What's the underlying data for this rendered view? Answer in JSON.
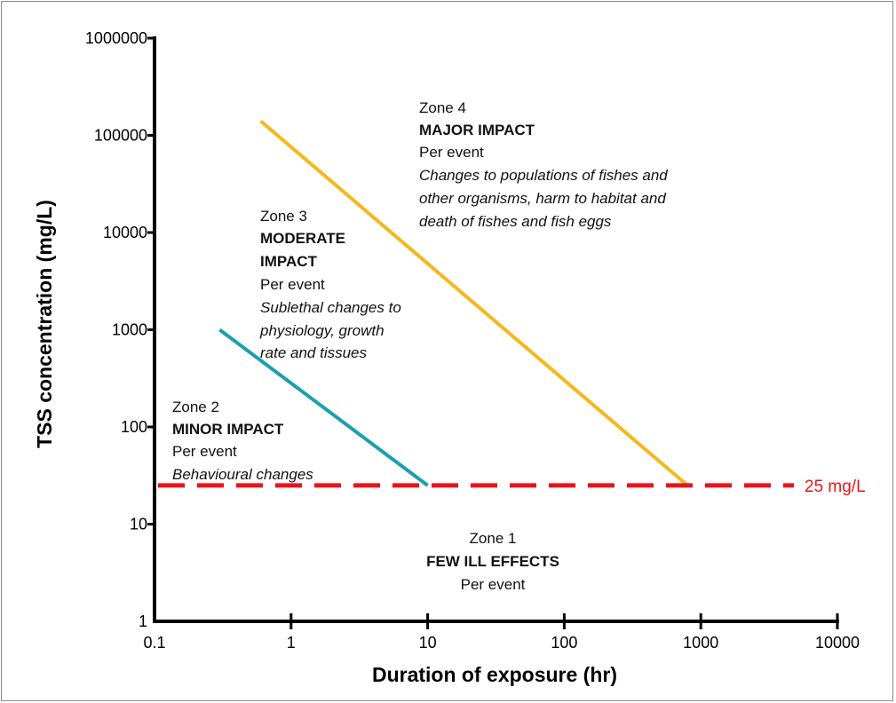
{
  "chart_data": {
    "type": "line",
    "x_scale": "log",
    "y_scale": "log",
    "xlabel": "Duration of exposure (hr)",
    "ylabel": "TSS concentration (mg/L)",
    "xlim": [
      0.1,
      10000
    ],
    "ylim": [
      1,
      1000000
    ],
    "x_ticks": [
      0.1,
      1,
      10,
      100,
      1000,
      10000
    ],
    "x_tick_labels": [
      "0.1",
      "1",
      "10",
      "100",
      "1000",
      "10000"
    ],
    "y_ticks": [
      1,
      10,
      100,
      1000,
      10000,
      100000,
      1000000
    ],
    "y_tick_labels": [
      "1",
      "10",
      "100",
      "1000",
      "10000",
      "100000",
      "1000000"
    ],
    "grid": false,
    "series": [
      {
        "color": "#1aa0ad",
        "points": [
          [
            0.3,
            1000
          ],
          [
            10,
            25
          ]
        ]
      },
      {
        "color": "#f4b81c",
        "points": [
          [
            0.6,
            140000
          ],
          [
            800,
            25
          ]
        ]
      }
    ],
    "threshold": {
      "value": 25,
      "label": "25 mg/L",
      "color": "#e8141c"
    },
    "zones": [
      {
        "name": "Zone 1",
        "impact": "FEW ILL EFFECTS",
        "frequency": "Per event",
        "description": []
      },
      {
        "name": "Zone 2",
        "impact": "MINOR IMPACT",
        "frequency": "Per event",
        "description": [
          "Behavioural changes"
        ]
      },
      {
        "name": "Zone 3",
        "impact": [
          "MODERATE",
          "IMPACT"
        ],
        "frequency": "Per event",
        "description": [
          "Sublethal changes to",
          "physiology, growth",
          "rate and tissues"
        ]
      },
      {
        "name": "Zone 4",
        "impact": "MAJOR IMPACT",
        "frequency": "Per event",
        "description": [
          "Changes to populations of fishes and",
          "other organisms, harm to habitat and",
          "death of fishes and fish eggs"
        ]
      }
    ]
  }
}
